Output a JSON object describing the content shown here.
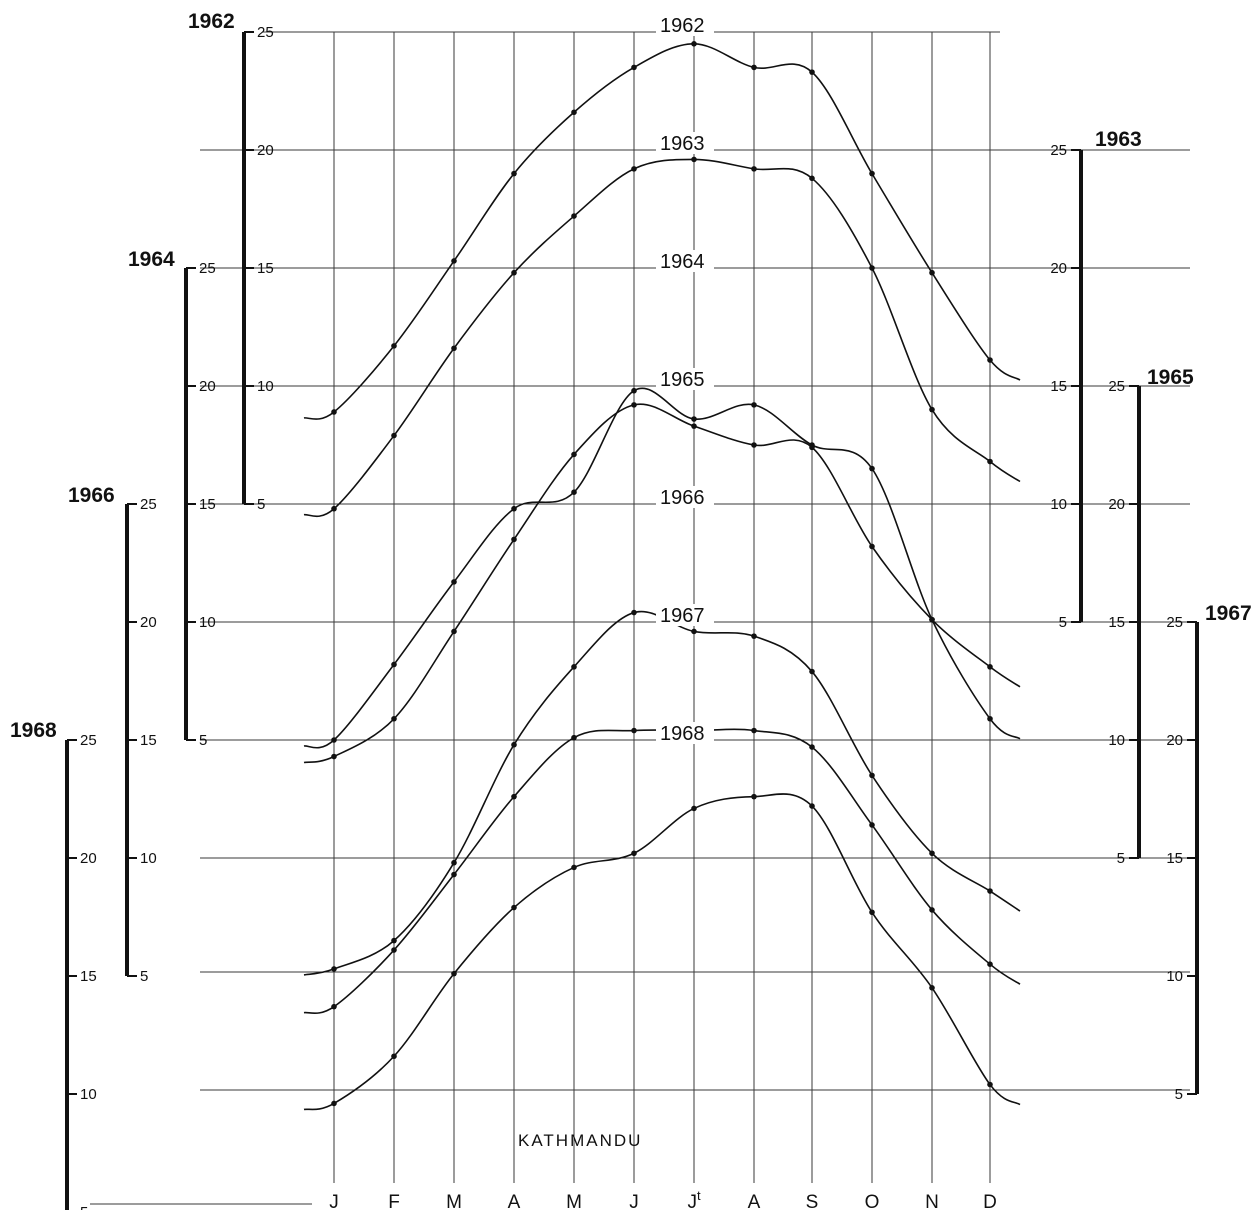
{
  "chart_data": {
    "type": "line",
    "title": "KATHMANDU",
    "categories": [
      "J",
      "F",
      "M",
      "A",
      "M",
      "J",
      "Jt",
      "A",
      "S",
      "O",
      "N",
      "D"
    ],
    "series": [
      {
        "name": "1962",
        "ylim": [
          5,
          25
        ],
        "scale_ticks": [
          "25",
          "20",
          "15",
          "10",
          "5"
        ],
        "values": [
          8.9,
          11.7,
          15.3,
          19.0,
          21.6,
          23.5,
          24.5,
          23.5,
          23.3,
          19.0,
          14.8,
          11.1
        ]
      },
      {
        "name": "1963",
        "ylim": [
          5,
          25
        ],
        "scale_ticks": [
          "25",
          "20",
          "15",
          "10",
          "5"
        ],
        "values": [
          9.8,
          12.9,
          16.6,
          19.8,
          22.2,
          24.2,
          24.6,
          24.2,
          23.8,
          20.0,
          14.0,
          11.8
        ]
      },
      {
        "name": "1964",
        "ylim": [
          5,
          25
        ],
        "scale_ticks": [
          "25",
          "20",
          "15",
          "10",
          "5"
        ],
        "values": [
          5.0,
          8.2,
          11.7,
          14.8,
          15.5,
          19.8,
          18.6,
          19.2,
          17.5,
          16.5,
          10.1,
          5.9
        ]
      },
      {
        "name": "1965",
        "ylim": [
          5,
          25
        ],
        "scale_ticks": [
          "25",
          "20",
          "15",
          "10",
          "5"
        ],
        "values": [
          9.3,
          10.9,
          14.6,
          18.5,
          22.1,
          24.2,
          23.3,
          22.5,
          22.4,
          18.2,
          15.1,
          13.1
        ]
      },
      {
        "name": "1966",
        "ylim": [
          5,
          25
        ],
        "scale_ticks": [
          "25",
          "20",
          "15",
          "10",
          "5"
        ],
        "values": [
          5.3,
          6.5,
          9.8,
          14.8,
          18.1,
          20.4,
          19.6,
          19.4,
          17.9,
          13.5,
          10.2,
          8.6
        ]
      },
      {
        "name": "1967",
        "ylim": [
          5,
          25
        ],
        "scale_ticks": [
          "25",
          "20",
          "15",
          "10",
          "5"
        ],
        "values": [
          8.7,
          11.1,
          14.3,
          17.6,
          20.1,
          20.4,
          20.4,
          20.4,
          19.7,
          16.4,
          12.8,
          10.5
        ]
      },
      {
        "name": "1968",
        "ylim": [
          5,
          25
        ],
        "scale_ticks": [
          "25",
          "20",
          "15",
          "10",
          "5"
        ],
        "values": [
          9.6,
          11.6,
          15.1,
          17.9,
          19.6,
          20.2,
          22.1,
          22.6,
          22.2,
          17.7,
          14.5,
          10.4
        ]
      }
    ]
  }
}
